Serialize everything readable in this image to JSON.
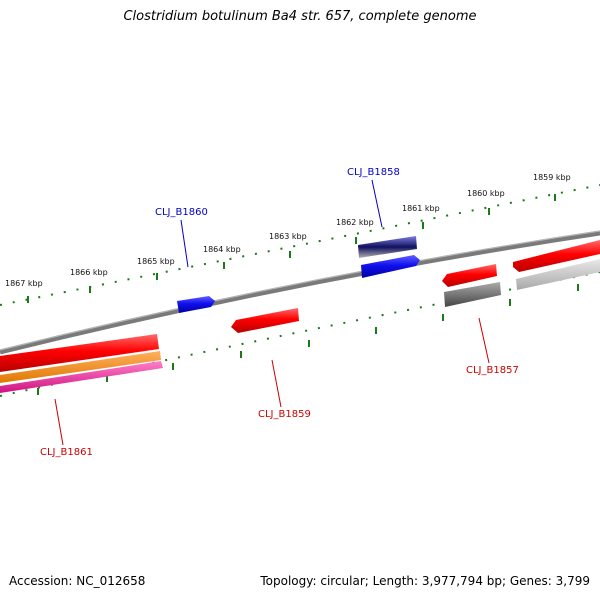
{
  "title": "Clostridium botulinum Ba4 str. 657, complete genome",
  "footer": {
    "accession": "Accession: NC_012658",
    "summary": "Topology: circular; Length: 3,977,794 bp; Genes: 3,799"
  },
  "colors": {
    "backbone": "#8a8a8a",
    "tick": "#1a7a1a",
    "forward_gene": "#1a1ae6",
    "reverse_gene": "#e00000",
    "forward_label": "#0000cc",
    "reverse_label": "#cc0000"
  },
  "scale_ticks": [
    "1867 kbp",
    "1866 kbp",
    "1865 kbp",
    "1864 kbp",
    "1863 kbp",
    "1862 kbp",
    "1861 kbp",
    "1860 kbp",
    "1859 kbp"
  ],
  "gene_labels": [
    {
      "name": "CLJ_B1858",
      "strand": "forward"
    },
    {
      "name": "CLJ_B1860",
      "strand": "forward"
    },
    {
      "name": "CLJ_B1857",
      "strand": "reverse"
    },
    {
      "name": "CLJ_B1859",
      "strand": "reverse"
    },
    {
      "name": "CLJ_B1861",
      "strand": "reverse"
    }
  ]
}
